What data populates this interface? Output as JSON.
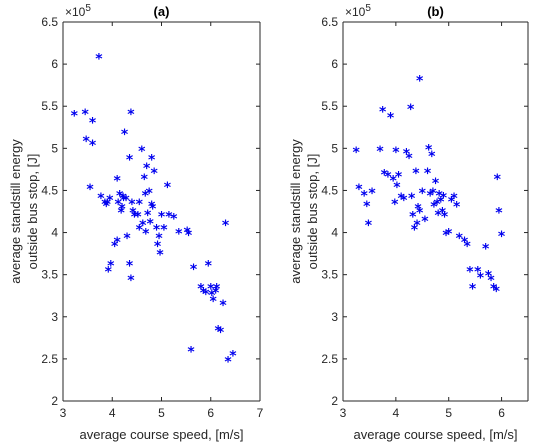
{
  "chart_data": [
    {
      "type": "scatter",
      "title": "(a)",
      "xlabel": "average course speed, [m/s]",
      "ylabel_lines": [
        "average standstill energy",
        "outside bus stop, [J]"
      ],
      "y_multiplier": "×10",
      "y_multiplier_exp": "5",
      "xlim": [
        3,
        7
      ],
      "ylim": [
        2,
        6.5
      ],
      "xticks": [
        "3",
        "4",
        "5",
        "6",
        "7"
      ],
      "yticks": [
        "2",
        "2.5",
        "3",
        "3.5",
        "4",
        "4.5",
        "5",
        "5.5",
        "6",
        "6.5"
      ],
      "marker_color": "#0000ee",
      "x": [
        3.23,
        3.45,
        3.47,
        3.6,
        3.6,
        3.55,
        3.73,
        3.77,
        3.85,
        3.88,
        3.9,
        3.95,
        3.92,
        3.97,
        4.1,
        4.15,
        4.12,
        4.18,
        4.2,
        4.25,
        4.22,
        4.28,
        4.23,
        4.35,
        4.38,
        4.4,
        4.42,
        4.45,
        4.3,
        4.05,
        4.1,
        4.35,
        4.38,
        4.52,
        4.55,
        4.6,
        4.62,
        4.65,
        4.67,
        4.68,
        4.7,
        4.72,
        4.75,
        4.77,
        4.8,
        4.82,
        4.85,
        4.9,
        4.92,
        4.95,
        4.97,
        4.8,
        4.55,
        5.0,
        5.05,
        5.12,
        5.15,
        5.25,
        5.35,
        5.52,
        5.55,
        5.65,
        5.8,
        5.85,
        5.9,
        5.95,
        6.0,
        6.02,
        6.05,
        6.1,
        6.12,
        6.15,
        6.2,
        6.25,
        6.3,
        6.35,
        6.45,
        5.6
      ],
      "y": [
        5.4,
        5.42,
        5.1,
        5.32,
        5.05,
        4.53,
        6.08,
        4.42,
        4.35,
        4.33,
        4.35,
        4.4,
        3.55,
        3.62,
        4.63,
        4.45,
        4.35,
        4.25,
        4.3,
        5.18,
        4.42,
        4.4,
        4.4,
        4.88,
        5.42,
        4.35,
        4.25,
        4.2,
        3.95,
        3.85,
        3.9,
        3.62,
        3.45,
        4.2,
        4.35,
        4.98,
        4.1,
        4.65,
        4.45,
        4.0,
        4.78,
        4.22,
        4.48,
        4.12,
        4.88,
        4.3,
        4.72,
        4.05,
        3.85,
        3.95,
        3.75,
        4.33,
        4.05,
        4.2,
        4.05,
        4.55,
        4.2,
        4.18,
        4.0,
        4.02,
        3.98,
        3.58,
        3.35,
        3.3,
        3.28,
        3.62,
        3.35,
        3.27,
        3.2,
        3.3,
        3.35,
        2.85,
        2.83,
        3.15,
        4.1,
        2.48,
        2.55,
        2.6
      ]
    },
    {
      "type": "scatter",
      "title": "(b)",
      "xlabel": "average course speed, [m/s]",
      "ylabel_lines": [
        "average standstill energy",
        "outside bus stop, [J]"
      ],
      "y_multiplier": "×10",
      "y_multiplier_exp": "5",
      "xlim": [
        3,
        6.5
      ],
      "ylim": [
        2,
        6.5
      ],
      "xticks": [
        "3",
        "4",
        "5",
        "6"
      ],
      "yticks": [
        "2",
        "2.5",
        "3",
        "3.5",
        "4",
        "4.5",
        "5",
        "5.5",
        "6",
        "6.5"
      ],
      "marker_color": "#0000ee",
      "x": [
        3.25,
        3.3,
        3.4,
        3.45,
        3.48,
        3.55,
        3.7,
        3.75,
        3.78,
        3.85,
        3.9,
        3.95,
        3.98,
        4.0,
        4.02,
        4.05,
        4.1,
        4.15,
        4.2,
        4.25,
        4.28,
        4.3,
        4.32,
        4.35,
        4.38,
        4.4,
        4.42,
        4.45,
        4.45,
        4.5,
        4.55,
        4.6,
        4.62,
        4.65,
        4.68,
        4.7,
        4.72,
        4.75,
        4.78,
        4.8,
        4.82,
        4.85,
        4.88,
        4.9,
        4.92,
        4.95,
        5.0,
        5.05,
        5.1,
        5.15,
        5.2,
        5.3,
        5.35,
        5.4,
        5.45,
        5.55,
        5.6,
        5.7,
        5.75,
        5.8,
        5.85,
        5.9,
        5.92,
        5.95,
        6.0
      ],
      "y": [
        4.97,
        4.53,
        4.45,
        4.33,
        4.1,
        4.48,
        4.98,
        5.45,
        4.7,
        4.68,
        5.38,
        4.63,
        4.35,
        4.97,
        4.55,
        4.68,
        4.42,
        4.4,
        4.95,
        4.9,
        5.48,
        4.42,
        4.2,
        4.05,
        4.72,
        4.1,
        4.3,
        4.25,
        5.82,
        4.48,
        4.15,
        4.72,
        5.0,
        4.45,
        4.92,
        4.48,
        4.32,
        4.6,
        4.35,
        4.22,
        4.45,
        4.38,
        4.25,
        4.43,
        4.2,
        3.98,
        4.0,
        4.38,
        4.42,
        4.32,
        3.95,
        3.9,
        3.85,
        3.55,
        3.35,
        3.55,
        3.48,
        3.82,
        3.5,
        3.45,
        3.35,
        3.32,
        4.65,
        4.25,
        3.97
      ]
    }
  ]
}
